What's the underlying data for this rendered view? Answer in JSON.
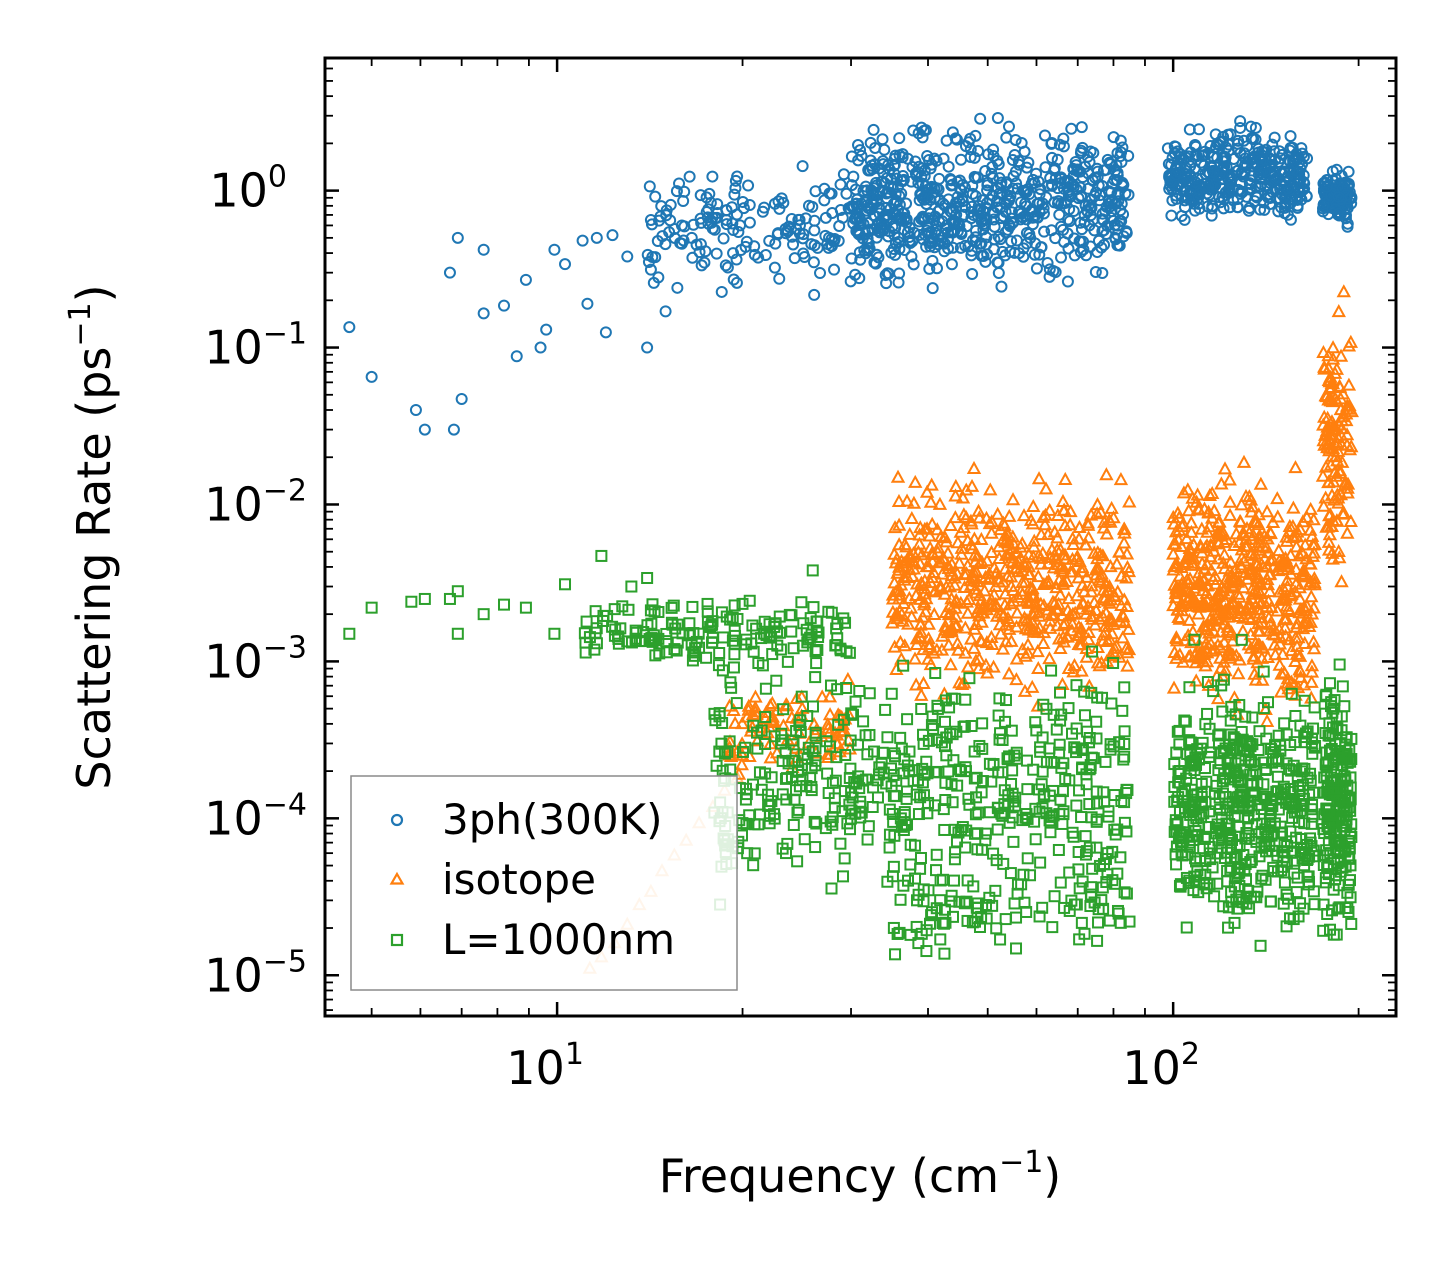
{
  "chart_data": {
    "type": "scatter",
    "xscale": "log",
    "yscale": "log",
    "xlim": [
      4.2,
      230
    ],
    "ylim": [
      5.5e-06,
      7
    ],
    "xlabel": "Frequency (cm$^{-1}$)",
    "ylabel": "Scattering Rate (ps$^{-1}$)",
    "xlabel_text": "Frequency (cm",
    "xlabel_sup": "−1",
    "xlabel_end": ")",
    "ylabel_text": "Scattering Rate (ps",
    "ylabel_sup": "−1",
    "ylabel_end": ")",
    "x_major_ticks": [
      {
        "value": 10,
        "base": "10",
        "exp": "1"
      },
      {
        "value": 100,
        "base": "10",
        "exp": "2"
      }
    ],
    "y_major_ticks": [
      {
        "value": 1,
        "base": "10",
        "exp": "0"
      },
      {
        "value": 0.1,
        "base": "10",
        "exp": "−1"
      },
      {
        "value": 0.01,
        "base": "10",
        "exp": "−2"
      },
      {
        "value": 0.001,
        "base": "10",
        "exp": "−3"
      },
      {
        "value": 0.0001,
        "base": "10",
        "exp": "−4"
      },
      {
        "value": 1e-05,
        "base": "10",
        "exp": "−5"
      }
    ],
    "grid": false,
    "legend": {
      "placement": "lower-left"
    },
    "series": [
      {
        "name": "3ph(300K)",
        "marker": "circle",
        "color": "#1f77b4",
        "sample_points": [
          [
            4.6,
            0.135
          ],
          [
            5.0,
            0.065
          ],
          [
            5.9,
            0.04
          ],
          [
            6.1,
            0.03
          ],
          [
            6.8,
            0.03
          ],
          [
            7.0,
            0.047
          ],
          [
            6.9,
            0.5
          ],
          [
            7.6,
            0.42
          ],
          [
            6.7,
            0.3
          ],
          [
            7.6,
            0.165
          ],
          [
            8.2,
            0.185
          ],
          [
            8.6,
            0.088
          ],
          [
            8.9,
            0.27
          ],
          [
            9.4,
            0.1
          ],
          [
            9.6,
            0.13
          ],
          [
            9.9,
            0.42
          ],
          [
            10.3,
            0.34
          ],
          [
            11.0,
            0.48
          ],
          [
            11.6,
            0.5
          ],
          [
            11.2,
            0.19
          ],
          [
            12.3,
            0.52
          ],
          [
            12.0,
            0.125
          ],
          [
            13.0,
            0.38
          ],
          [
            14.0,
            0.1
          ],
          [
            14.2,
            0.65
          ],
          [
            14.6,
            0.28
          ],
          [
            15.0,
            0.17
          ]
        ],
        "ranges": [
          {
            "x": [
              14,
              45
            ],
            "y": [
              0.18,
              1.8
            ]
          },
          {
            "x": [
              30,
              85
            ],
            "y": [
              0.2,
              3.5
            ]
          },
          {
            "x": [
              98,
              165
            ],
            "y": [
              0.5,
              3.2
            ]
          },
          {
            "x": [
              175,
              195
            ],
            "y": [
              0.55,
              1.5
            ]
          }
        ]
      },
      {
        "name": "isotope",
        "marker": "triangle",
        "color": "#ff7f0e",
        "light_color": "#ffbb78",
        "sample_points": [
          [
            11.3,
            1.1e-05
          ],
          [
            11.8,
            1.3e-05
          ],
          [
            12.4,
            1.6e-05
          ],
          [
            13.0,
            2.1e-05
          ],
          [
            13.6,
            2.8e-05
          ],
          [
            14.2,
            3.4e-05
          ],
          [
            14.8,
            4.6e-05
          ],
          [
            15.5,
            5.8e-05
          ],
          [
            16.2,
            7.2e-05
          ],
          [
            17.0,
            9.3e-05
          ],
          [
            17.9,
            0.000118
          ],
          [
            18.7,
            0.00015
          ],
          [
            19.6,
            0.00018
          ]
        ],
        "ranges": [
          {
            "x": [
              19,
              30
            ],
            "y": [
              0.00015,
              0.0009
            ]
          },
          {
            "x": [
              35,
              85
            ],
            "y": [
              0.0004,
              0.022
            ]
          },
          {
            "x": [
              100,
              170
            ],
            "y": [
              0.0003,
              0.026
            ]
          },
          {
            "x": [
              175,
              195
            ],
            "y": [
              0.0015,
              0.32
            ]
          }
        ]
      },
      {
        "name": "L=1000nm",
        "marker": "square",
        "color": "#2ca02c",
        "sample_points": [
          [
            4.6,
            0.0015
          ],
          [
            5.0,
            0.0022
          ],
          [
            5.8,
            0.0024
          ],
          [
            6.1,
            0.0025
          ],
          [
            6.7,
            0.0025
          ],
          [
            6.9,
            0.0028
          ],
          [
            6.9,
            0.0015
          ],
          [
            7.6,
            0.002
          ],
          [
            8.2,
            0.0023
          ],
          [
            8.9,
            0.0022
          ],
          [
            9.9,
            0.0015
          ],
          [
            10.3,
            0.0031
          ],
          [
            11.8,
            0.0047
          ],
          [
            13.2,
            0.003
          ],
          [
            14.0,
            0.0034
          ],
          [
            26.0,
            0.0038
          ]
        ],
        "ranges": [
          {
            "x": [
              11,
              30
            ],
            "y": [
              0.0008,
              0.003
            ]
          },
          {
            "x": [
              18,
              85
            ],
            "y": [
              2e-05,
              0.0015
            ]
          },
          {
            "x": [
              35,
              85
            ],
            "y": [
              1e-05,
              8e-05
            ]
          },
          {
            "x": [
              100,
              170
            ],
            "y": [
              1e-05,
              0.0015
            ]
          },
          {
            "x": [
              175,
              195
            ],
            "y": [
              1e-05,
              0.0015
            ]
          }
        ]
      }
    ]
  }
}
